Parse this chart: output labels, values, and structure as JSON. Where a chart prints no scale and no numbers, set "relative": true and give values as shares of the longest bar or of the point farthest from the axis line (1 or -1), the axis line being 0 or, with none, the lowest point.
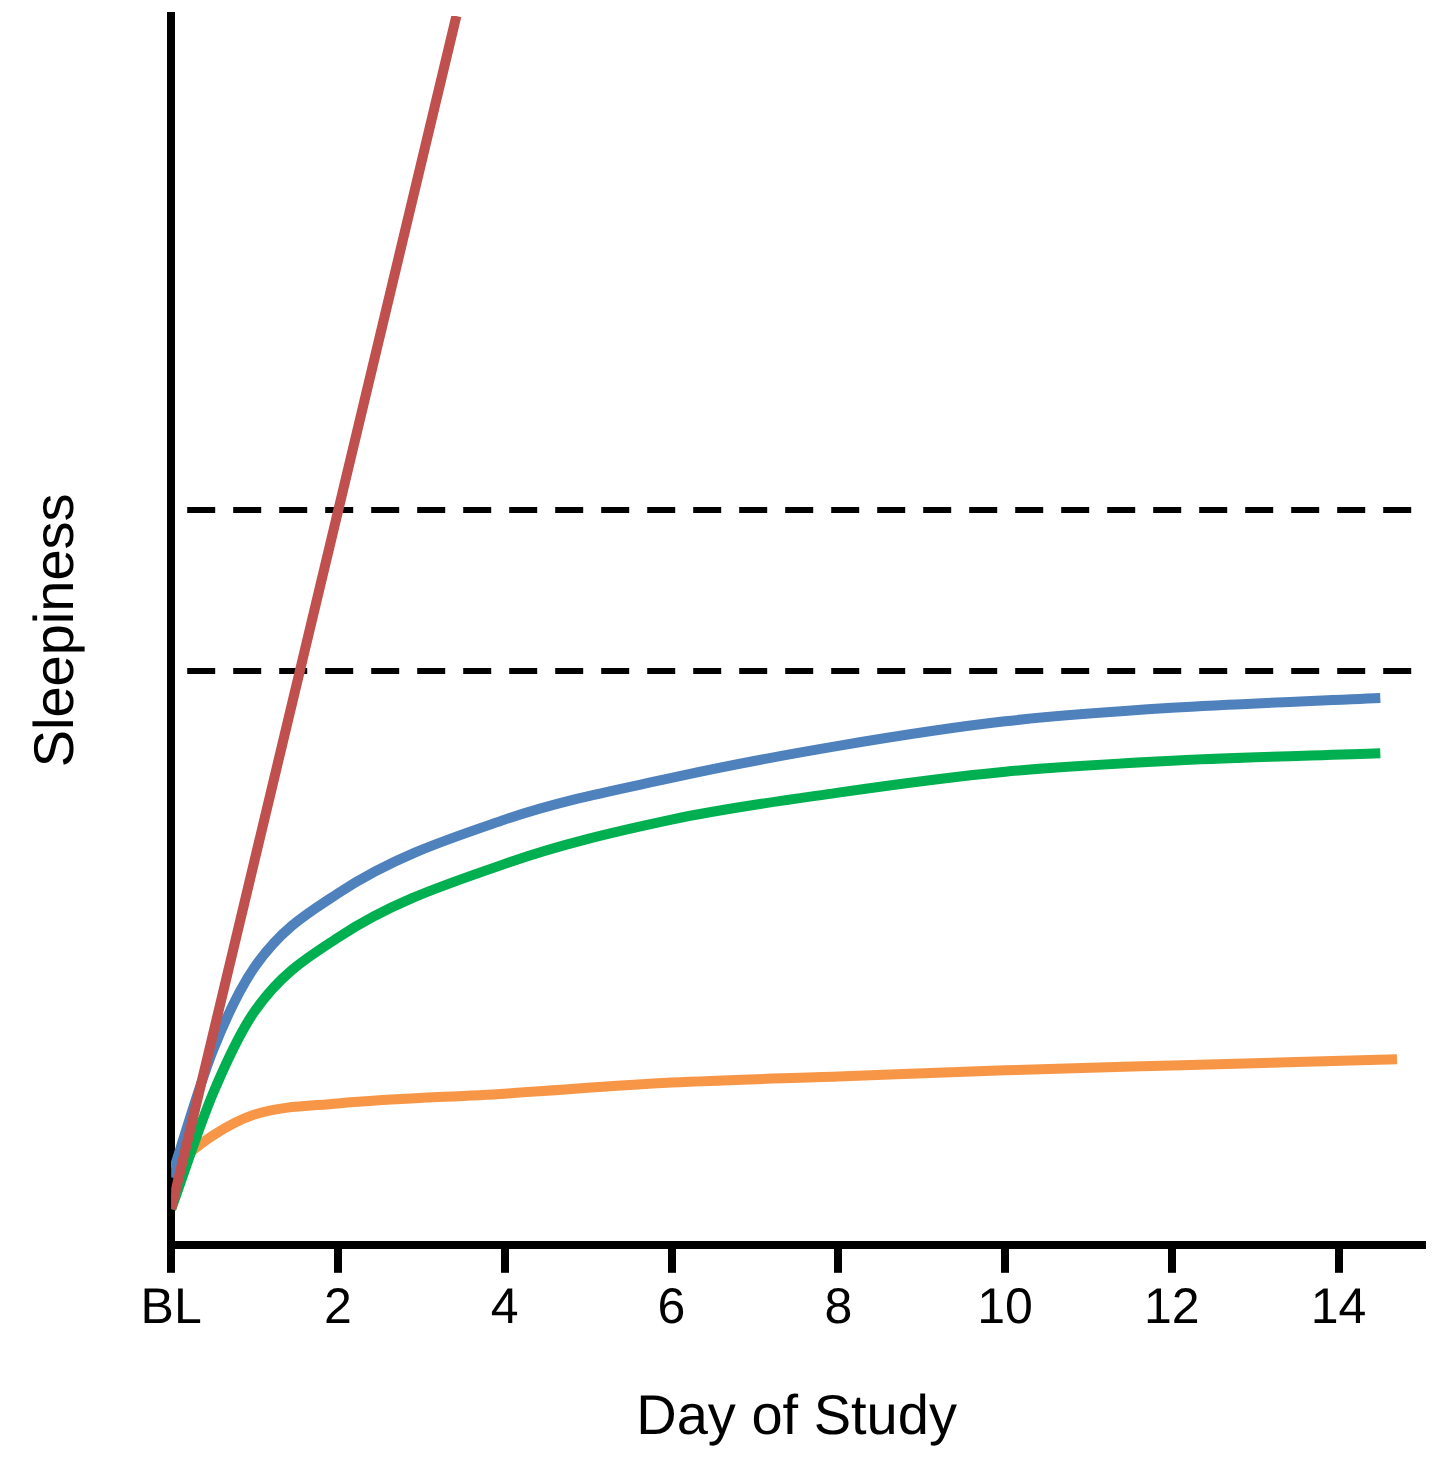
{
  "chart_data": {
    "type": "line",
    "relative": true,
    "xlabel": "Day of Study",
    "ylabel": "Sleepiness",
    "xlim": [
      0,
      15
    ],
    "xticks": [
      {
        "value": 0,
        "label": "BL"
      },
      2,
      4,
      6,
      8,
      10,
      12,
      14
    ],
    "tick_labels": "x",
    "grid": false,
    "legend": false,
    "marker": "none",
    "line_style": "solid",
    "ref_lines": [
      {
        "axis": "y",
        "value": 0.598,
        "line_style": "dashed",
        "color": "#000000"
      },
      {
        "axis": "y",
        "value": 0.467,
        "line_style": "dashed",
        "color": "#000000"
      }
    ],
    "series": [
      {
        "color": "#c0504d",
        "x": [
          0,
          3.42
        ],
        "values": [
          0.029,
          1
        ]
      },
      {
        "color": "#4f81bd",
        "x": [
          0,
          0.5,
          1,
          2,
          4,
          6,
          8,
          10,
          12,
          14.5
        ],
        "values": [
          0.055,
          0.158,
          0.226,
          0.286,
          0.346,
          0.38,
          0.406,
          0.426,
          0.437,
          0.445
        ]
      },
      {
        "color": "#00b050",
        "x": [
          0,
          0.5,
          1,
          2,
          4,
          6,
          8,
          10,
          12,
          14.5
        ],
        "values": [
          0.029,
          0.123,
          0.19,
          0.25,
          0.31,
          0.346,
          0.368,
          0.385,
          0.394,
          0.4
        ]
      },
      {
        "color": "#f79646",
        "x": [
          0,
          0.5,
          1,
          2,
          4,
          6,
          8,
          10,
          12,
          14.7
        ],
        "values": [
          0.063,
          0.089,
          0.106,
          0.115,
          0.123,
          0.132,
          0.137,
          0.142,
          0.146,
          0.151
        ]
      }
    ]
  }
}
